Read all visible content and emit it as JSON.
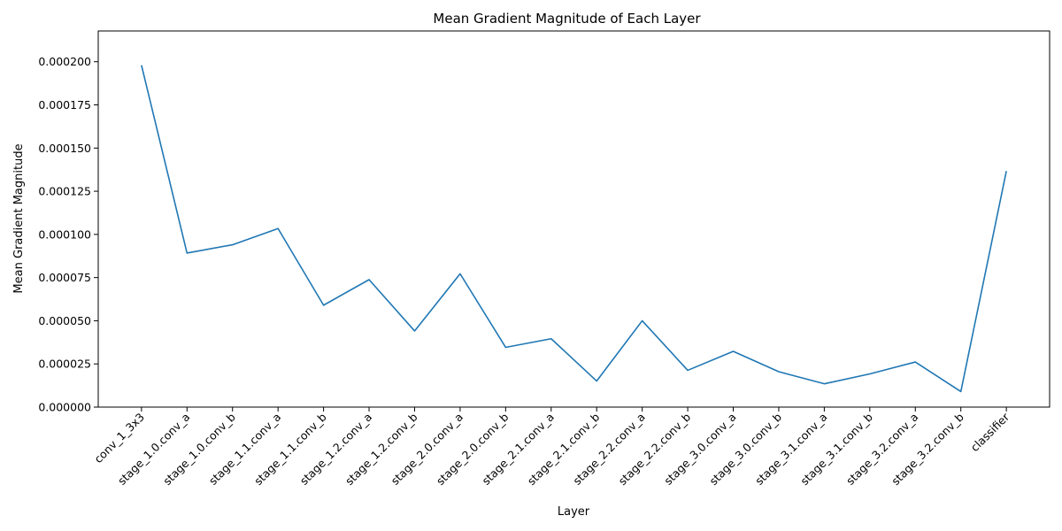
{
  "chart_data": {
    "type": "line",
    "title": "Mean Gradient Magnitude of Each Layer",
    "xlabel": "Layer",
    "ylabel": "Mean Gradient Magnitude",
    "categories": [
      "conv_1_3x3",
      "stage_1.0.conv_a",
      "stage_1.0.conv_b",
      "stage_1.1.conv_a",
      "stage_1.1.conv_b",
      "stage_1.2.conv_a",
      "stage_1.2.conv_b",
      "stage_2.0.conv_a",
      "stage_2.0.conv_b",
      "stage_2.1.conv_a",
      "stage_2.1.conv_b",
      "stage_2.2.conv_a",
      "stage_2.2.conv_b",
      "stage_3.0.conv_a",
      "stage_3.0.conv_b",
      "stage_3.1.conv_a",
      "stage_3.1.conv_b",
      "stage_3.2.conv_a",
      "stage_3.2.conv_b",
      "classifier"
    ],
    "series": [
      {
        "values": [
          0.000198,
          8.92e-05,
          9.4e-05,
          0.0001034,
          5.9e-05,
          7.38e-05,
          4.41e-05,
          7.72e-05,
          3.46e-05,
          3.96e-05,
          1.51e-05,
          5e-05,
          2.13e-05,
          3.23e-05,
          2.05e-05,
          1.35e-05,
          1.92e-05,
          2.61e-05,
          9e-06,
          0.0001367
        ],
        "color": "#1f77b4"
      }
    ],
    "ylim": [
      0,
      0.0002178
    ],
    "yticks": [
      0,
      2.5e-05,
      5e-05,
      7.5e-05,
      0.0001,
      0.000125,
      0.00015,
      0.000175,
      0.0002
    ],
    "ytick_labels": [
      "0.000000",
      "0.000025",
      "0.000050",
      "0.000075",
      "0.000100",
      "0.000125",
      "0.000150",
      "0.000175",
      "0.000200"
    ],
    "grid": false,
    "legend": "none"
  }
}
